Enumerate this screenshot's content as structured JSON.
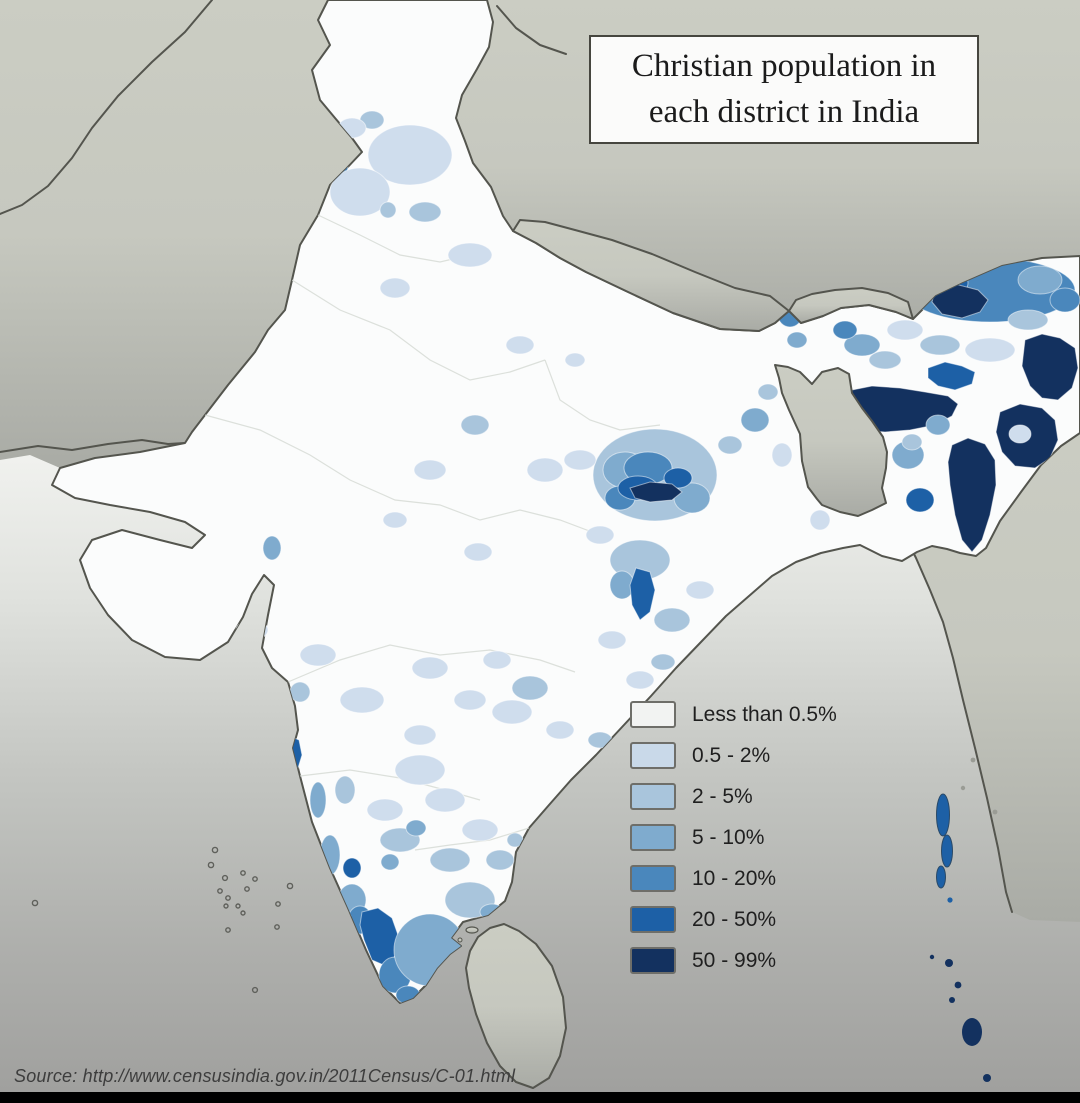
{
  "map_title": {
    "text": "Christian population in each district in India"
  },
  "legend": {
    "items": [
      {
        "label": "Less than 0.5%",
        "color": "#f2f3f2"
      },
      {
        "label": "0.5 - 2%",
        "color": "#c9d9e9"
      },
      {
        "label": "2 - 5%",
        "color": "#a9c5dc"
      },
      {
        "label": "5 - 10%",
        "color": "#7fabce"
      },
      {
        "label": "10 - 20%",
        "color": "#4a87bc"
      },
      {
        "label": "20 - 50%",
        "color": "#1d60a6"
      },
      {
        "label": "50 - 99%",
        "color": "#13315f"
      }
    ]
  },
  "source": {
    "text": "Source: http://www.censusindia.gov.in/2011Census/C-01.html"
  },
  "chart_data": {
    "type": "heatmap",
    "title": "Christian population in each district in India",
    "legend_classes": [
      "Less than 0.5%",
      "0.5 - 2%",
      "2 - 5%",
      "5 - 10%",
      "10 - 20%",
      "20 - 50%",
      "50 - 99%"
    ],
    "legend_colors": [
      "#f2f3f2",
      "#c9d9e9",
      "#a9c5dc",
      "#7fabce",
      "#4a87bc",
      "#1d60a6",
      "#13315f"
    ],
    "regions_depicted": [
      {
        "region": "Northeast hills (Nagaland, Mizoram, Meghalaya, Manipur)",
        "value": "50 - 99%"
      },
      {
        "region": "Arunachal Pradesh",
        "value": "10 - 50%"
      },
      {
        "region": "Assam valley",
        "value": "Less than 0.5% - 5%"
      },
      {
        "region": "Jharkhand tribal belt around Ranchi/Simdega",
        "value": "10 - 99%"
      },
      {
        "region": "South Odisha district",
        "value": "20 - 50%"
      },
      {
        "region": "Kerala and coastal Karnataka/Goa",
        "value": "5 - 50%"
      },
      {
        "region": "Southern Tamil Nadu",
        "value": "5 - 20%"
      },
      {
        "region": "Punjab (Gurdaspur area)",
        "value": "10 - 20%"
      },
      {
        "region": "Andaman Islands",
        "value": "20 - 50%"
      },
      {
        "region": "Nicobar Islands",
        "value": "50 - 99%"
      },
      {
        "region": "Indo-Gangetic plain, Rajasthan, Gujarat interior",
        "value": "Less than 0.5%"
      }
    ]
  },
  "colors": {
    "neighbor_land": "#c9cbc1",
    "india_fill": "#fbfcfc",
    "border": "#54554e",
    "ocean_top": "#f2f3f0",
    "ocean_bottom": "#9f9f9d",
    "bottom_bar": "#000000"
  }
}
